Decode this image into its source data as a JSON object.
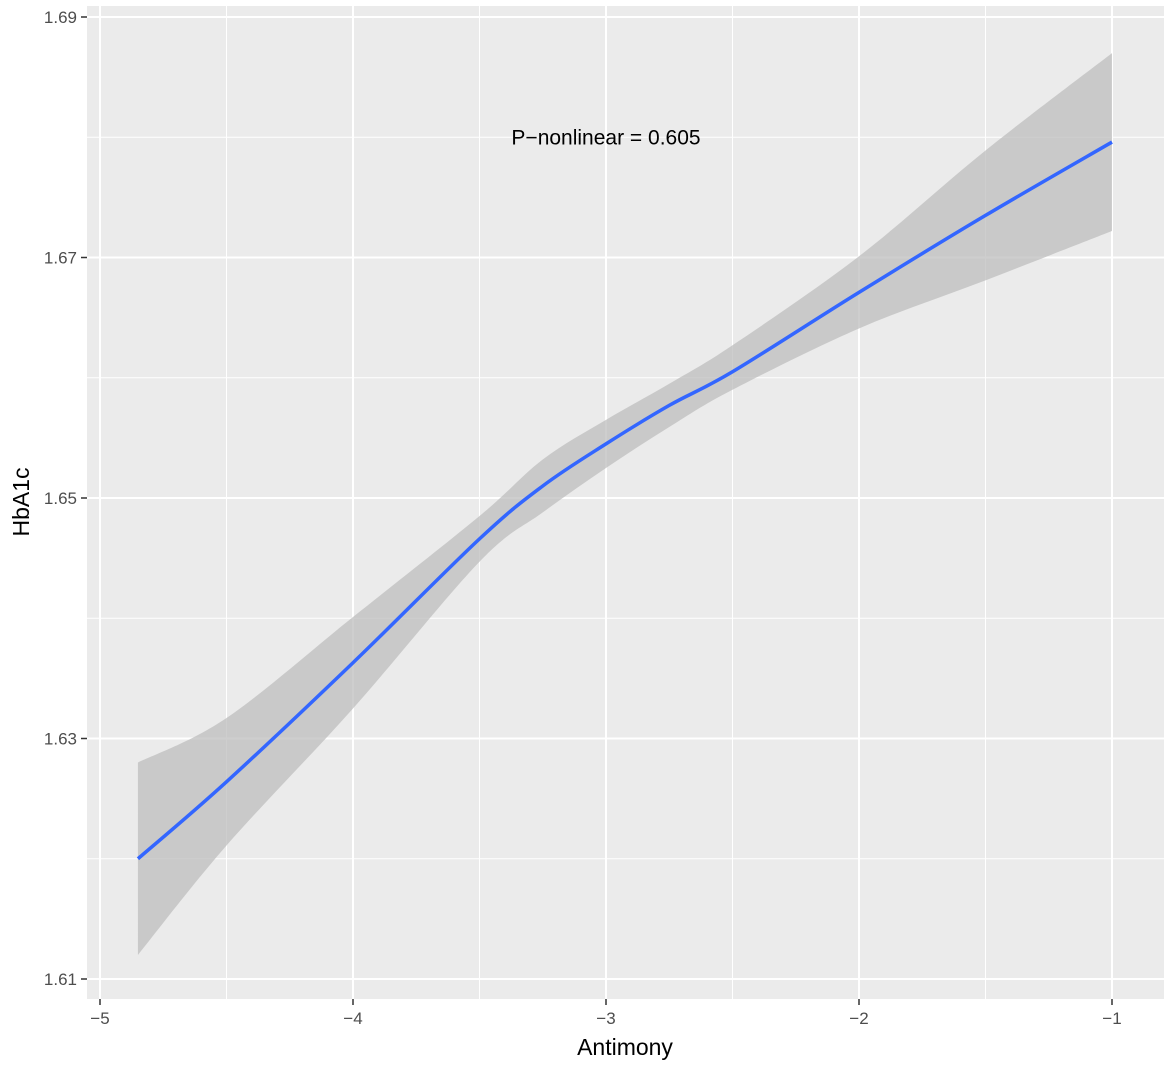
{
  "colors": {
    "panel_background": "#ebebeb",
    "grid_line": "#ffffff",
    "line": "#3366ff",
    "ribbon": "#bdbdbd",
    "tick": "#333333"
  },
  "chart_data": {
    "type": "line",
    "title": "",
    "xlabel": "Antimony",
    "ylabel": "HbA1c",
    "xlim": [
      -5,
      -1
    ],
    "ylim": [
      1.61,
      1.69
    ],
    "x_ticks": [
      -5,
      -4,
      -3,
      -2,
      -1
    ],
    "x_tick_labels": [
      "−5",
      "−4",
      "−3",
      "−2",
      "−1"
    ],
    "y_ticks": [
      1.61,
      1.63,
      1.65,
      1.67,
      1.69
    ],
    "y_tick_labels": [
      "1.61",
      "1.63",
      "1.65",
      "1.67",
      "1.69"
    ],
    "grid": true,
    "annotation": {
      "text": "P−nonlinear = 0.605",
      "x": -3.0,
      "y": 1.68
    },
    "series": [
      {
        "x": [
          -4.85,
          -4.5,
          -4.0,
          -3.5,
          -3.25,
          -3.0,
          -2.75,
          -2.5,
          -2.0,
          -1.5,
          -1.0
        ],
        "y": [
          1.62,
          1.6264,
          1.6363,
          1.6466,
          1.651,
          1.6545,
          1.6577,
          1.6605,
          1.6671,
          1.6735,
          1.6796
        ],
        "lower": [
          1.612,
          1.6211,
          1.6325,
          1.6447,
          1.6488,
          1.6525,
          1.6559,
          1.659,
          1.6641,
          1.6681,
          1.6722
        ],
        "upper": [
          1.628,
          1.6317,
          1.6401,
          1.6485,
          1.6532,
          1.6565,
          1.6595,
          1.6627,
          1.6701,
          1.6789,
          1.687
        ]
      }
    ]
  }
}
